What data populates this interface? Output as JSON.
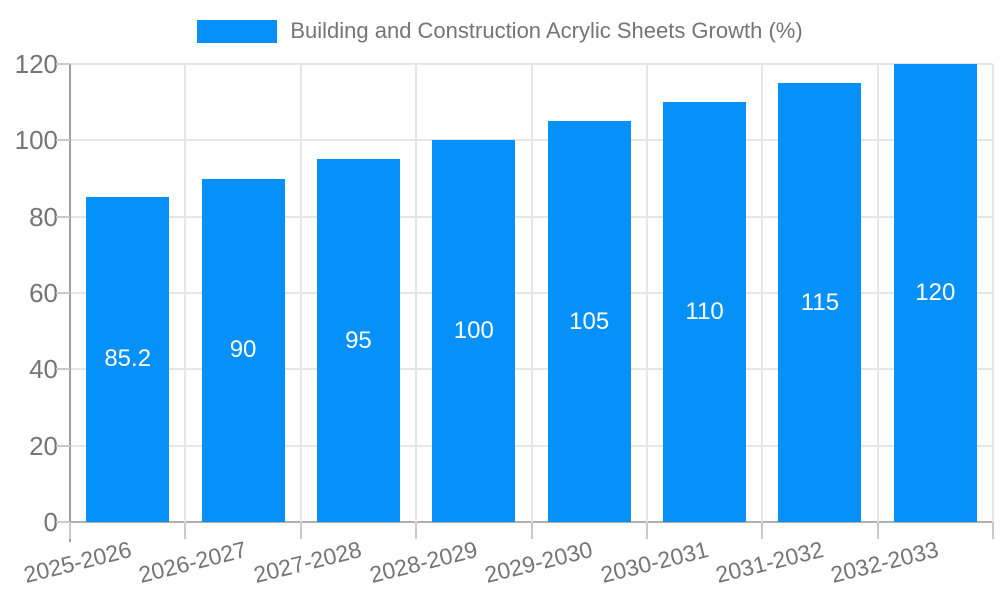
{
  "legend": {
    "label": "Building and Construction Acrylic Sheets Growth (%)"
  },
  "chart_data": {
    "type": "bar",
    "title": "Building and Construction Acrylic Sheets Growth (%)",
    "categories": [
      "2025-2026",
      "2026-2027",
      "2027-2028",
      "2028-2029",
      "2029-2030",
      "2030-2031",
      "2031-2032",
      "2032-2033"
    ],
    "values": [
      85.2,
      90,
      95,
      100,
      105,
      110,
      115,
      120
    ],
    "value_labels": [
      "85.2",
      "90",
      "95",
      "100",
      "105",
      "110",
      "115",
      "120"
    ],
    "xlabel": "",
    "ylabel": "",
    "ylim": [
      0,
      120
    ],
    "yticks": [
      0,
      20,
      40,
      60,
      80,
      100,
      120
    ],
    "grid": true,
    "legend_position": "top",
    "value_label_position": "inside-center"
  },
  "colors": {
    "bar": "#0590fa",
    "gridline": "#e6e6e6",
    "baseline": "#b0b0b0",
    "axis_line": "#9e9e9e",
    "tick_mark": "#c9c9c9",
    "axis_text": "#757575",
    "value_text": "#ffffff"
  }
}
